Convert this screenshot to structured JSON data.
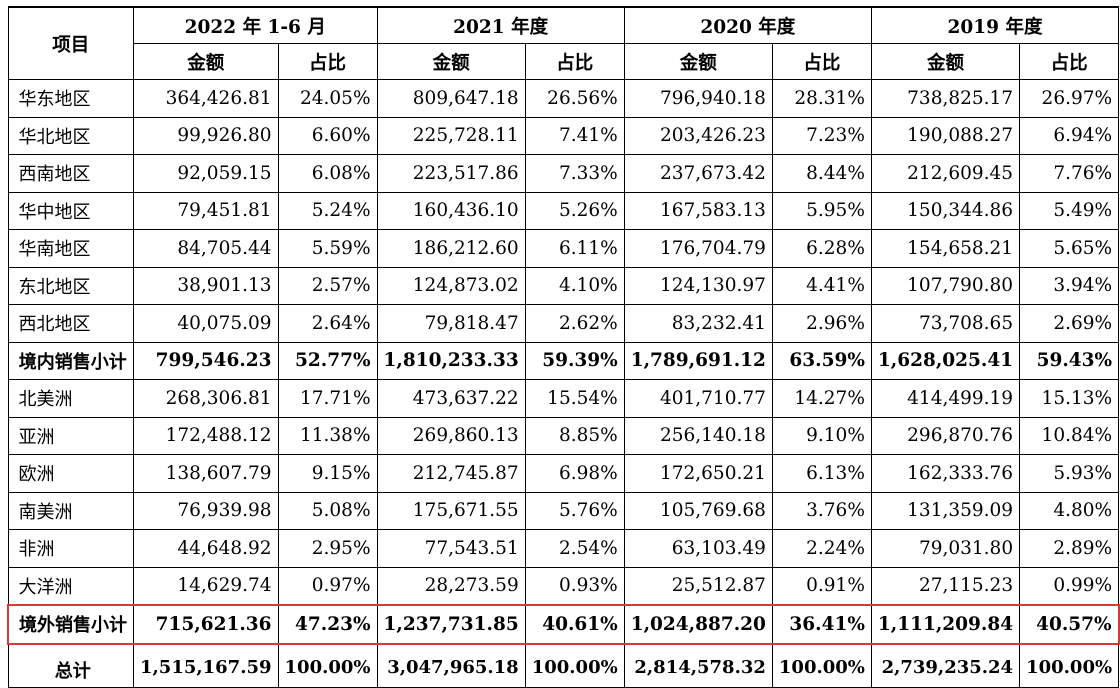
{
  "header": {
    "item": "项目",
    "periods": [
      "2022 年 1-6 月",
      "2021 年度",
      "2020 年度",
      "2019 年度"
    ],
    "amount": "金额",
    "ratio": "占比"
  },
  "rows": [
    {
      "name": "华东地区",
      "values": [
        "364,426.81",
        "24.05%",
        "809,647.18",
        "26.56%",
        "796,940.18",
        "28.31%",
        "738,825.17",
        "26.97%"
      ]
    },
    {
      "name": "华北地区",
      "values": [
        "99,926.80",
        "6.60%",
        "225,728.11",
        "7.41%",
        "203,426.23",
        "7.23%",
        "190,088.27",
        "6.94%"
      ]
    },
    {
      "name": "西南地区",
      "values": [
        "92,059.15",
        "6.08%",
        "223,517.86",
        "7.33%",
        "237,673.42",
        "8.44%",
        "212,609.45",
        "7.76%"
      ]
    },
    {
      "name": "华中地区",
      "values": [
        "79,451.81",
        "5.24%",
        "160,436.10",
        "5.26%",
        "167,583.13",
        "5.95%",
        "150,344.86",
        "5.49%"
      ]
    },
    {
      "name": "华南地区",
      "values": [
        "84,705.44",
        "5.59%",
        "186,212.60",
        "6.11%",
        "176,704.79",
        "6.28%",
        "154,658.21",
        "5.65%"
      ]
    },
    {
      "name": "东北地区",
      "values": [
        "38,901.13",
        "2.57%",
        "124,873.02",
        "4.10%",
        "124,130.97",
        "4.41%",
        "107,790.80",
        "3.94%"
      ]
    },
    {
      "name": "西北地区",
      "values": [
        "40,075.09",
        "2.64%",
        "79,818.47",
        "2.62%",
        "83,232.41",
        "2.96%",
        "73,708.65",
        "2.69%"
      ]
    },
    {
      "name": "境内销售小计",
      "subtotal": true,
      "values": [
        "799,546.23",
        "52.77%",
        "1,810,233.33",
        "59.39%",
        "1,789,691.12",
        "63.59%",
        "1,628,025.41",
        "59.43%"
      ]
    },
    {
      "name": "北美洲",
      "values": [
        "268,306.81",
        "17.71%",
        "473,637.22",
        "15.54%",
        "401,710.77",
        "14.27%",
        "414,499.19",
        "15.13%"
      ]
    },
    {
      "name": "亚洲",
      "values": [
        "172,488.12",
        "11.38%",
        "269,860.13",
        "8.85%",
        "256,140.18",
        "9.10%",
        "296,870.76",
        "10.84%"
      ]
    },
    {
      "name": "欧洲",
      "values": [
        "138,607.79",
        "9.15%",
        "212,745.87",
        "6.98%",
        "172,650.21",
        "6.13%",
        "162,333.76",
        "5.93%"
      ]
    },
    {
      "name": "南美洲",
      "values": [
        "76,939.98",
        "5.08%",
        "175,671.55",
        "5.76%",
        "105,769.68",
        "3.76%",
        "131,359.09",
        "4.80%"
      ]
    },
    {
      "name": "非洲",
      "values": [
        "44,648.92",
        "2.95%",
        "77,543.51",
        "2.54%",
        "63,103.49",
        "2.24%",
        "79,031.80",
        "2.89%"
      ]
    },
    {
      "name": "大洋洲",
      "values": [
        "14,629.74",
        "0.97%",
        "28,273.59",
        "0.93%",
        "25,512.87",
        "0.91%",
        "27,115.23",
        "0.99%"
      ]
    },
    {
      "name": "境外销售小计",
      "subtotal": true,
      "highlight": true,
      "values": [
        "715,621.36",
        "47.23%",
        "1,237,731.85",
        "40.61%",
        "1,024,887.20",
        "36.41%",
        "1,111,209.84",
        "40.57%"
      ]
    },
    {
      "name": "总计",
      "subtotal": true,
      "cut": true,
      "values": [
        "1,515,167.59",
        "100.00%",
        "3,047,965.18",
        "100.00%",
        "2,814,578.32",
        "100.00%",
        "2,739,235.24",
        "100.00%"
      ]
    }
  ]
}
